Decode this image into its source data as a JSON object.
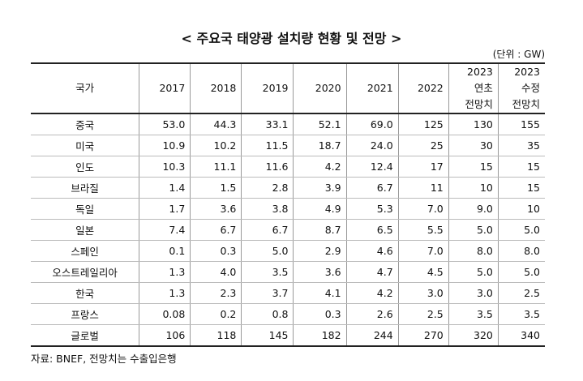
{
  "header": {
    "title": "< 주요국 태양광 설치량 현황 및 전망 >",
    "unit": "(단위 : GW)"
  },
  "table": {
    "columns": [
      "국가",
      "2017",
      "2018",
      "2019",
      "2020",
      "2021",
      "2022",
      [
        "2023",
        "연초",
        "전망치"
      ],
      [
        "2023",
        "수정",
        "전망치"
      ]
    ],
    "rows": [
      [
        "중국",
        "53.0",
        "44.3",
        "33.1",
        "52.1",
        "69.0",
        "125",
        "130",
        "155"
      ],
      [
        "미국",
        "10.9",
        "10.2",
        "11.5",
        "18.7",
        "24.0",
        "25",
        "30",
        "35"
      ],
      [
        "인도",
        "10.3",
        "11.1",
        "11.6",
        "4.2",
        "12.4",
        "17",
        "15",
        "15"
      ],
      [
        "브라질",
        "1.4",
        "1.5",
        "2.8",
        "3.9",
        "6.7",
        "11",
        "10",
        "15"
      ],
      [
        "독일",
        "1.7",
        "3.6",
        "3.8",
        "4.9",
        "5.3",
        "7.0",
        "9.0",
        "10"
      ],
      [
        "일본",
        "7.4",
        "6.7",
        "6.7",
        "8.7",
        "6.5",
        "5.5",
        "5.0",
        "5.0"
      ],
      [
        "스페인",
        "0.1",
        "0.3",
        "5.0",
        "2.9",
        "4.6",
        "7.0",
        "8.0",
        "8.0"
      ],
      [
        "오스트레일리아",
        "1.3",
        "4.0",
        "3.5",
        "3.6",
        "4.7",
        "4.5",
        "5.0",
        "5.0"
      ],
      [
        "한국",
        "1.3",
        "2.3",
        "3.7",
        "4.1",
        "4.2",
        "3.0",
        "3.0",
        "2.5"
      ],
      [
        "프랑스",
        "0.08",
        "0.2",
        "0.8",
        "0.3",
        "2.6",
        "2.5",
        "3.5",
        "3.5"
      ],
      [
        "글로벌",
        "106",
        "118",
        "145",
        "182",
        "244",
        "270",
        "320",
        "340"
      ]
    ]
  },
  "footer": {
    "source": "자료: BNEF, 전망치는 수출입은행"
  }
}
